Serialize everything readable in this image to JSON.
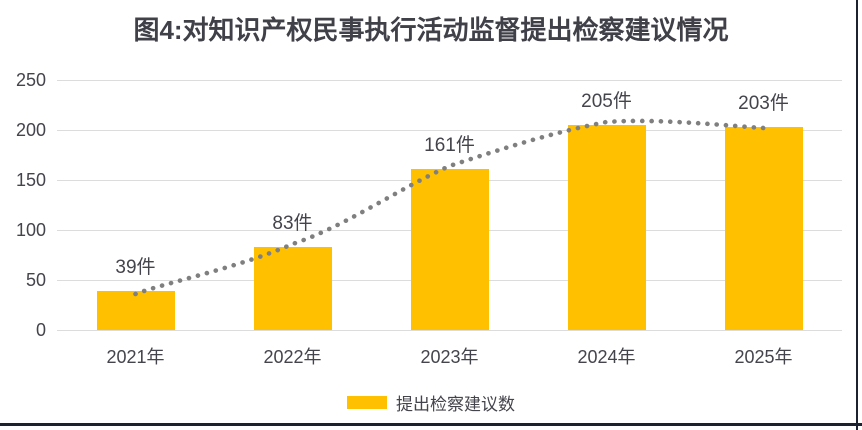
{
  "chart_data": {
    "type": "bar",
    "title": "图4:对知识产权民事执行活动监督提出检察建议情况",
    "categories": [
      "2021年",
      "2022年",
      "2023年",
      "2024年",
      "2025年"
    ],
    "values": [
      39,
      83,
      161,
      205,
      203
    ],
    "data_labels": [
      "39件",
      "83件",
      "161件",
      "205件",
      "203件"
    ],
    "unit": "件",
    "xlabel": "",
    "ylabel": "",
    "ylim": [
      0,
      250
    ],
    "y_ticks": [
      0,
      50,
      100,
      150,
      200,
      250
    ],
    "grid": true,
    "legend": {
      "position": "bottom",
      "entries": [
        "提出检察建议数"
      ]
    },
    "series": [
      {
        "name": "提出检察建议数",
        "type": "bar",
        "values": [
          39,
          83,
          161,
          205,
          203
        ]
      },
      {
        "name": "趋势虚线",
        "type": "dotted-trendline",
        "values": [
          39,
          83,
          161,
          205,
          203
        ]
      }
    ],
    "colors": {
      "bar": "#ffc000",
      "trendline": "#7f7f7f",
      "gridline": "#dcdcdc",
      "label": "#44444c",
      "title": "#404049",
      "border": "#1c2130"
    }
  }
}
